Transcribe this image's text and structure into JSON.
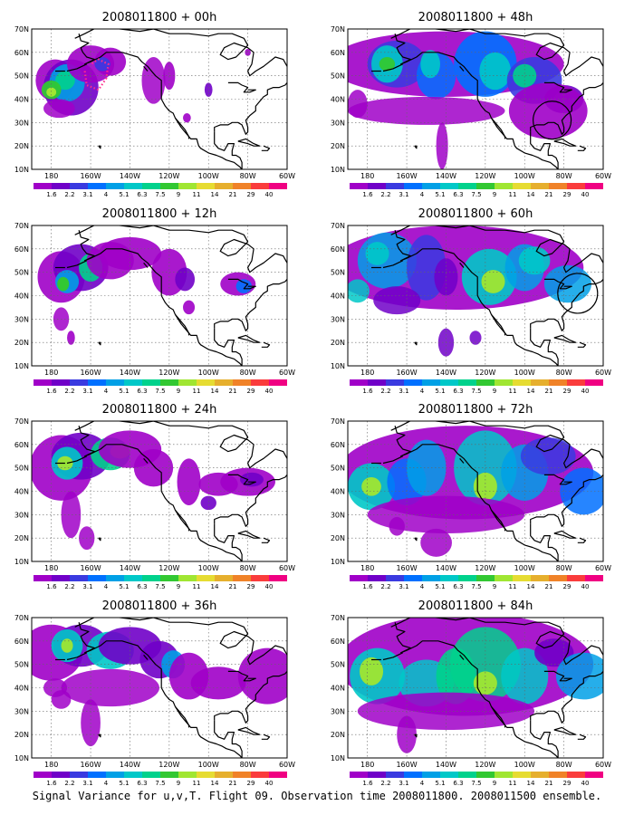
{
  "caption": "Signal Variance for u,v,T. Flight 09. Observation time 2008011800. 2008011500 ensemble.",
  "colorbar": {
    "labels": [
      "1.6",
      "2.2",
      "3.1",
      "4",
      "5.1",
      "6.3",
      "7.5",
      "9",
      "11",
      "14",
      "21",
      "29",
      "40"
    ],
    "colors": [
      "#a000c8",
      "#7000c8",
      "#3a3ae0",
      "#0070ff",
      "#00a0e6",
      "#00c8c8",
      "#00d28c",
      "#32c832",
      "#a0e632",
      "#e6dc32",
      "#e6af2d",
      "#f08228",
      "#fa3c3c",
      "#f00082"
    ]
  },
  "axes": {
    "lon_labels": [
      "180",
      "160W",
      "140W",
      "120W",
      "100W",
      "80W",
      "60W"
    ],
    "lat_labels": [
      "70N",
      "60N",
      "50N",
      "40N",
      "30N",
      "20N",
      "10N"
    ]
  },
  "panels": [
    {
      "title": "2008011800 + 00h",
      "lead": "00h",
      "pos": [
        0,
        0
      ],
      "annotation": "flight-track"
    },
    {
      "title": "2008011800 + 12h",
      "lead": "12h",
      "pos": [
        0,
        1
      ]
    },
    {
      "title": "2008011800 + 24h",
      "lead": "24h",
      "pos": [
        0,
        2
      ]
    },
    {
      "title": "2008011800 + 36h",
      "lead": "36h",
      "pos": [
        0,
        3
      ]
    },
    {
      "title": "2008011800 + 48h",
      "lead": "48h",
      "pos": [
        1,
        0
      ],
      "annotation": "circle-gulf"
    },
    {
      "title": "2008011800 + 60h",
      "lead": "60h",
      "pos": [
        1,
        1
      ],
      "annotation": "circle-east"
    },
    {
      "title": "2008011800 + 72h",
      "lead": "72h",
      "pos": [
        1,
        2
      ]
    },
    {
      "title": "2008011800 + 84h",
      "lead": "84h",
      "pos": [
        1,
        3
      ]
    }
  ]
}
